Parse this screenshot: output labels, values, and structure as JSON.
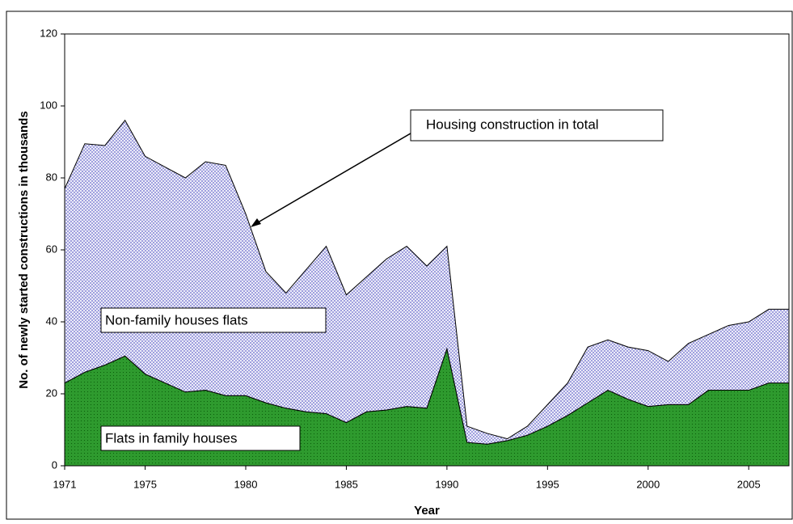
{
  "chart_data": {
    "type": "stacked_area",
    "xlabel": "Year",
    "ylabel": "No. of newly started constructions in thousands",
    "x": [
      1971,
      1972,
      1973,
      1974,
      1975,
      1976,
      1977,
      1978,
      1979,
      1980,
      1981,
      1982,
      1983,
      1984,
      1985,
      1986,
      1987,
      1988,
      1989,
      1990,
      1991,
      1992,
      1993,
      1994,
      1995,
      1996,
      1997,
      1998,
      1999,
      2000,
      2001,
      2002,
      2003,
      2004,
      2005,
      2006,
      2007
    ],
    "series": [
      {
        "name": "Flats in family houses",
        "color": "#2e9a2e",
        "values": [
          23,
          26,
          28,
          30.5,
          25.5,
          23,
          20.5,
          21,
          19.5,
          19.5,
          17.5,
          16,
          15,
          14.5,
          12,
          15,
          15.5,
          16.5,
          16,
          32.5,
          6.5,
          6,
          7,
          8.5,
          11,
          14,
          17.5,
          21,
          18.5,
          16.5,
          17,
          17,
          21,
          21,
          21,
          23,
          23
        ]
      },
      {
        "name": "Non-family houses flats",
        "color": "#8c8cd8",
        "values": [
          54,
          63.5,
          61,
          65.5,
          60.5,
          60,
          59.5,
          63.5,
          64,
          50.5,
          36.5,
          32,
          39.5,
          46.5,
          35.5,
          37.5,
          42,
          44.5,
          39.5,
          28.5,
          4.5,
          3,
          0.5,
          2.5,
          6,
          9,
          15.5,
          14,
          14.5,
          15.5,
          12,
          17,
          15.5,
          18,
          19,
          20.5,
          20.5
        ]
      }
    ],
    "annotations": [
      "Housing construction in total"
    ],
    "xlim": [
      1971,
      2007
    ],
    "xticks": [
      1971,
      1975,
      1980,
      1985,
      1990,
      1995,
      2000,
      2005
    ],
    "ylim": [
      0,
      120
    ],
    "yticks": [
      0,
      20,
      40,
      60,
      80,
      100,
      120
    ]
  }
}
